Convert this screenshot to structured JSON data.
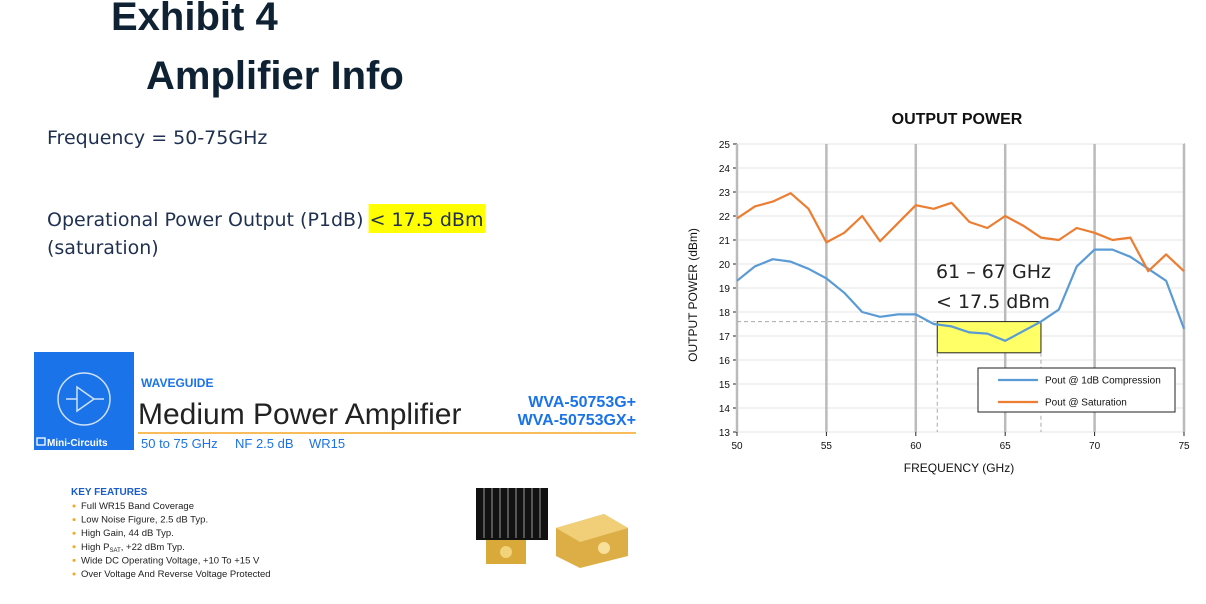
{
  "header": {
    "title": "Exhibit 4",
    "subtitle": "Amplifier Info"
  },
  "body": {
    "frequency": "Frequency = 50-75GHz",
    "power_label": "Operational Power Output (P1dB)",
    "power_highlight": "< 17.5 dBm",
    "power_note": "(saturation)"
  },
  "product": {
    "category": "WAVEGUIDE",
    "name": "Medium Power Amplifier",
    "models": [
      "WVA-50753G+",
      "WVA-50753GX+"
    ],
    "brand": "Mini-Circuits",
    "specs": [
      "50 to 75 GHz",
      "NF 2.5 dB",
      "WR15"
    ],
    "features_title": "KEY FEATURES",
    "features": [
      "Full WR15 Band Coverage",
      "Low Noise Figure, 2.5 dB Typ.",
      "High Gain, 44 dB Typ.",
      {
        "prefix": "High P",
        "sub": "SAT",
        "rest": ", +22 dBm Typ."
      },
      "Wide DC Operating Voltage, +10 To +15 V",
      "Over Voltage And Reverse Voltage Protected"
    ]
  },
  "chart_data": {
    "type": "line",
    "title": "OUTPUT POWER",
    "x_label": "FREQUENCY (GHz)",
    "y_label": "OUTPUT POWER (dBm)",
    "x": [
      50,
      51,
      52,
      53,
      54,
      55,
      56,
      57,
      58,
      59,
      60,
      61,
      62,
      63,
      64,
      65,
      66,
      67,
      68,
      69,
      70,
      71,
      72,
      73,
      74,
      75
    ],
    "series": [
      {
        "name": "Pout @ 1dB Compression",
        "color": "#5b9bd5",
        "values": [
          19.3,
          19.9,
          20.2,
          20.1,
          19.8,
          19.4,
          18.8,
          18.0,
          17.8,
          17.9,
          17.9,
          17.5,
          17.4,
          17.15,
          17.1,
          16.8,
          17.2,
          17.6,
          18.1,
          19.9,
          20.6,
          20.6,
          20.3,
          19.8,
          19.3,
          17.3
        ]
      },
      {
        "name": "Pout @ Saturation",
        "color": "#ed7d31",
        "values": [
          21.9,
          22.4,
          22.6,
          22.95,
          22.3,
          20.9,
          21.3,
          22.0,
          20.95,
          21.7,
          22.45,
          22.3,
          22.55,
          21.75,
          21.5,
          22.0,
          21.6,
          21.1,
          21.0,
          21.5,
          21.3,
          21.0,
          21.1,
          19.7,
          20.4,
          19.7
        ]
      }
    ],
    "xlim": [
      50,
      75
    ],
    "xticks": [
      50,
      55,
      60,
      65,
      70,
      75
    ],
    "ylim": [
      13,
      25
    ],
    "yticks": [
      13,
      14,
      15,
      16,
      17,
      18,
      19,
      20,
      21,
      22,
      23,
      24,
      25
    ],
    "grid": true,
    "legend": "lower right",
    "annotation": [
      "61 – 67 GHz",
      "< 17.5 dBm"
    ],
    "highlight": {
      "xlim": [
        61.2,
        67
      ],
      "ylim": [
        16.3,
        17.6
      ],
      "color": "#ffff66"
    }
  }
}
